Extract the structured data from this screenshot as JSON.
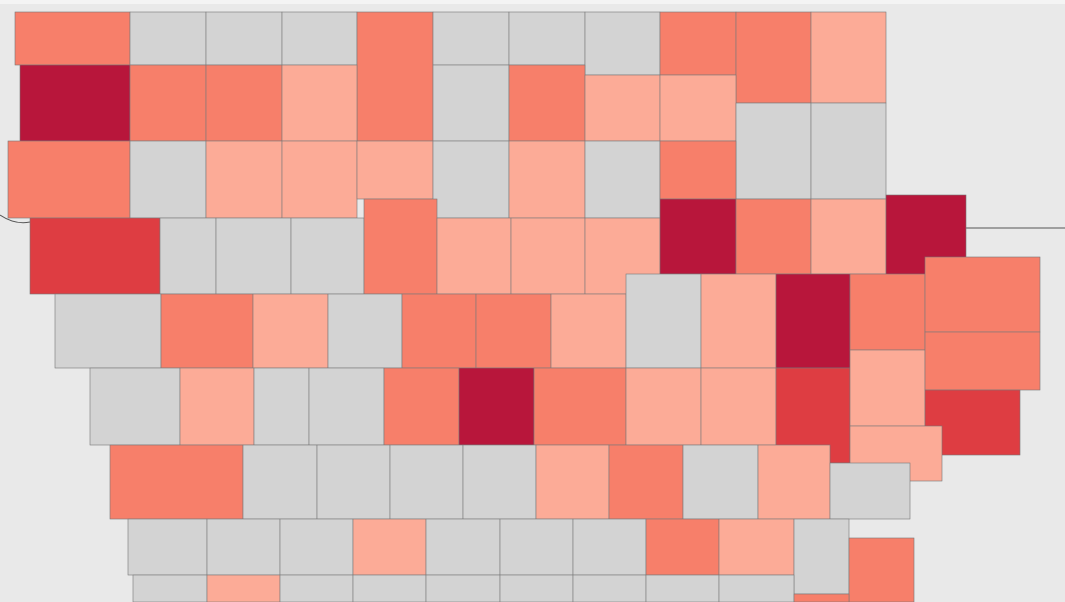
{
  "map": {
    "fills": [
      "#f77f6a",
      "#d3d3d3",
      "#d3d3d3",
      "#d3d3d3",
      "#f77f6a",
      "#d3d3d3",
      "#d3d3d3",
      "#d3d3d3",
      "#f77f6a",
      "#f77f6a",
      "#fcab97",
      "#b8163b",
      "#f77f6a",
      "#f77f6a",
      "#fcab97",
      "#d3d3d3",
      "#f77f6a",
      "#fcab97",
      "#fcab97",
      "#d3d3d3",
      "#d3d3d3",
      "#f77f6a",
      "#d3d3d3",
      "#fcab97",
      "#fcab97",
      "#fcab97",
      "#d3d3d3",
      "#fcab97",
      "#d3d3d3",
      "#f77f6a",
      "#de3d42",
      "#d3d3d3",
      "#d3d3d3",
      "#d3d3d3",
      "#f77f6a",
      "#fcab97",
      "#fcab97",
      "#fcab97",
      "#b8163b",
      "#f77f6a",
      "#fcab97",
      "#b8163b",
      "#d3d3d3",
      "#f77f6a",
      "#fcab97",
      "#d3d3d3",
      "#f77f6a",
      "#f77f6a",
      "#fcab97",
      "#d3d3d3",
      "#fcab97",
      "#b8163b",
      "#f77f6a",
      "#f77f6a",
      "#d3d3d3",
      "#fcab97",
      "#d3d3d3",
      "#d3d3d3",
      "#f77f6a",
      "#b8163b",
      "#f77f6a",
      "#fcab97",
      "#fcab97",
      "#de3d42",
      "#fcab97",
      "#f77f6a",
      "#de3d42",
      "#fcab97",
      "#f77f6a",
      "#d3d3d3",
      "#d3d3d3",
      "#d3d3d3",
      "#d3d3d3",
      "#fcab97",
      "#f77f6a",
      "#d3d3d3",
      "#fcab97",
      "#d3d3d3",
      "#d3d3d3",
      "#d3d3d3",
      "#d3d3d3",
      "#fcab97",
      "#d3d3d3",
      "#d3d3d3",
      "#d3d3d3",
      "#f77f6a",
      "#fcab97",
      "#d3d3d3",
      "#f77f6a",
      "#d3d3d3",
      "#fcab97",
      "#d3d3d3",
      "#d3d3d3",
      "#d3d3d3",
      "#d3d3d3",
      "#d3d3d3",
      "#d3d3d3",
      "#d3d3d3",
      "#f77f6a"
    ]
  }
}
